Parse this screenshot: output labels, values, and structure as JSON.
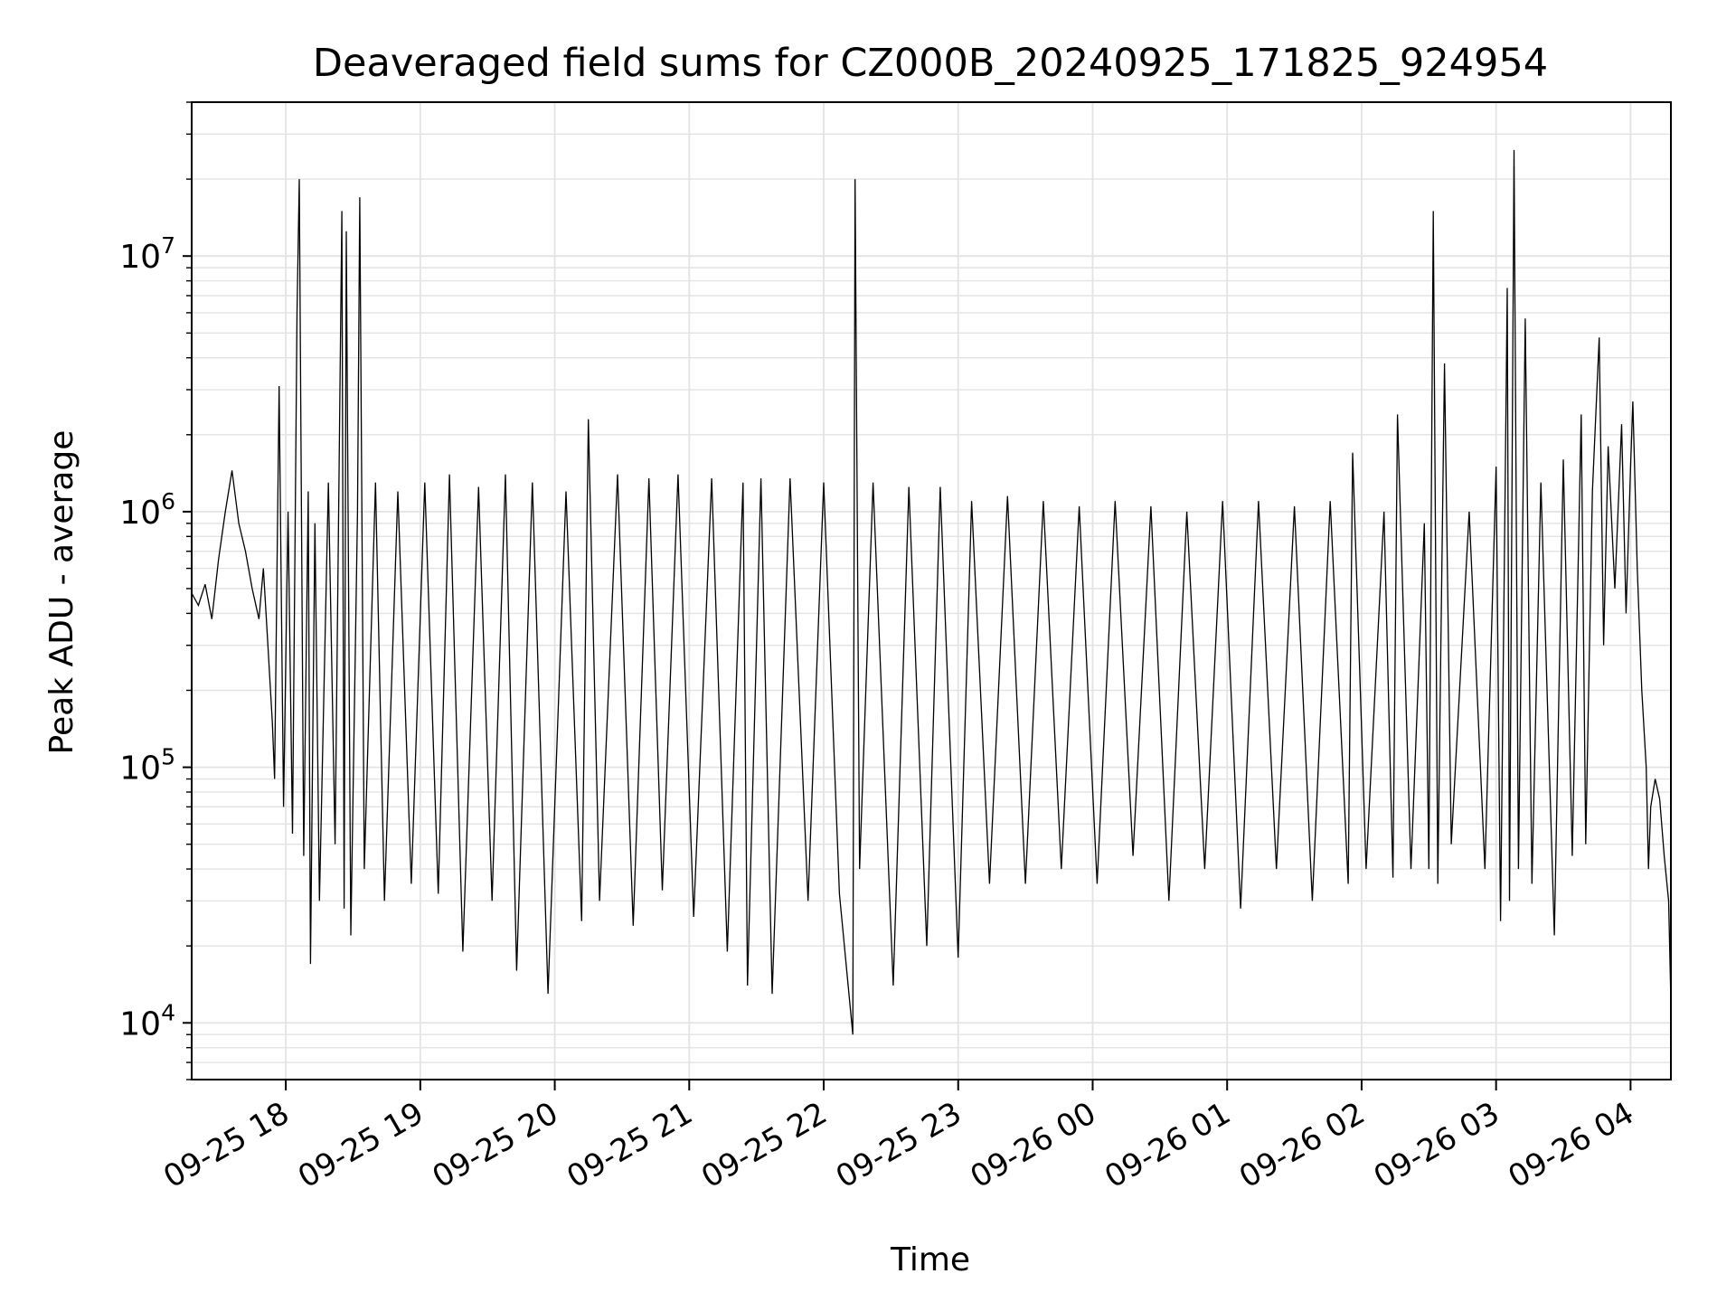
{
  "chart_data": {
    "type": "line",
    "title": "Deaveraged field sums for CZ000B_20240925_171825_924954",
    "xlabel": "Time",
    "ylabel": "Peak ADU - average",
    "yscale": "log",
    "grid": true,
    "legend": "none",
    "line_color": "#000000",
    "x_range": [
      "09-25 17:18",
      "09-26 04:18"
    ],
    "ylim": [
      6000,
      40000000
    ],
    "x_ticks": [
      "09-25 18",
      "09-25 19",
      "09-25 20",
      "09-25 21",
      "09-25 22",
      "09-25 23",
      "09-26 00",
      "09-26 01",
      "09-26 02",
      "09-26 03",
      "09-26 04"
    ],
    "y_ticks": [
      {
        "value": 10000,
        "base": "10",
        "exp": "4"
      },
      {
        "value": 100000,
        "base": "10",
        "exp": "5"
      },
      {
        "value": 1000000,
        "base": "10",
        "exp": "6"
      },
      {
        "value": 10000000,
        "base": "10",
        "exp": "7"
      }
    ],
    "series": [
      {
        "points": [
          [
            "09-25 17:18",
            480000
          ],
          [
            "09-25 17:21",
            430000
          ],
          [
            "09-25 17:24",
            520000
          ],
          [
            "09-25 17:27",
            380000
          ],
          [
            "09-25 17:30",
            650000
          ],
          [
            "09-25 17:33",
            1000000
          ],
          [
            "09-25 17:36",
            1450000
          ],
          [
            "09-25 17:39",
            900000
          ],
          [
            "09-25 17:42",
            700000
          ],
          [
            "09-25 17:45",
            500000
          ],
          [
            "09-25 17:48",
            380000
          ],
          [
            "09-25 17:50",
            600000
          ],
          [
            "09-25 17:52",
            300000
          ],
          [
            "09-25 17:54",
            150000
          ],
          [
            "09-25 17:55",
            90000
          ],
          [
            "09-25 17:57",
            3100000
          ],
          [
            "09-25 17:59",
            70000
          ],
          [
            "09-25 18:01",
            1000000
          ],
          [
            "09-25 18:03",
            55000
          ],
          [
            "09-25 18:05",
            6000000
          ],
          [
            "09-25 18:06",
            20000000
          ],
          [
            "09-25 18:08",
            45000
          ],
          [
            "09-25 18:10",
            1200000
          ],
          [
            "09-25 18:11",
            17000
          ],
          [
            "09-25 18:13",
            900000
          ],
          [
            "09-25 18:15",
            30000
          ],
          [
            "09-25 18:19",
            1300000
          ],
          [
            "09-25 18:22",
            50000
          ],
          [
            "09-25 18:25",
            15000000
          ],
          [
            "09-25 18:26",
            28000
          ],
          [
            "09-25 18:27",
            12500000
          ],
          [
            "09-25 18:29",
            22000
          ],
          [
            "09-25 18:32",
            1000000
          ],
          [
            "09-25 18:33",
            17000000
          ],
          [
            "09-25 18:35",
            40000
          ],
          [
            "09-25 18:40",
            1300000
          ],
          [
            "09-25 18:44",
            30000
          ],
          [
            "09-25 18:50",
            1200000
          ],
          [
            "09-25 18:56",
            35000
          ],
          [
            "09-25 19:02",
            1300000
          ],
          [
            "09-25 19:08",
            32000
          ],
          [
            "09-25 19:13",
            1400000
          ],
          [
            "09-25 19:19",
            19000
          ],
          [
            "09-25 19:26",
            1250000
          ],
          [
            "09-25 19:32",
            30000
          ],
          [
            "09-25 19:38",
            1400000
          ],
          [
            "09-25 19:43",
            16000
          ],
          [
            "09-25 19:50",
            1300000
          ],
          [
            "09-25 19:57",
            13000
          ],
          [
            "09-25 20:05",
            1200000
          ],
          [
            "09-25 20:12",
            25000
          ],
          [
            "09-25 20:15",
            2300000
          ],
          [
            "09-25 20:20",
            30000
          ],
          [
            "09-25 20:28",
            1400000
          ],
          [
            "09-25 20:35",
            24000
          ],
          [
            "09-25 20:42",
            1350000
          ],
          [
            "09-25 20:48",
            33000
          ],
          [
            "09-25 20:55",
            1400000
          ],
          [
            "09-25 21:02",
            26000
          ],
          [
            "09-25 21:10",
            1350000
          ],
          [
            "09-25 21:17",
            19000
          ],
          [
            "09-25 21:24",
            1300000
          ],
          [
            "09-25 21:26",
            14000
          ],
          [
            "09-25 21:32",
            1350000
          ],
          [
            "09-25 21:37",
            13000
          ],
          [
            "09-25 21:45",
            1350000
          ],
          [
            "09-25 21:53",
            30000
          ],
          [
            "09-25 22:00",
            1300000
          ],
          [
            "09-25 22:07",
            32000
          ],
          [
            "09-25 22:13",
            9000
          ],
          [
            "09-25 22:14",
            20000000
          ],
          [
            "09-25 22:16",
            40000
          ],
          [
            "09-25 22:22",
            1300000
          ],
          [
            "09-25 22:31",
            14000
          ],
          [
            "09-25 22:38",
            1250000
          ],
          [
            "09-25 22:46",
            20000
          ],
          [
            "09-25 22:52",
            1250000
          ],
          [
            "09-25 23:00",
            18000
          ],
          [
            "09-25 23:06",
            1100000
          ],
          [
            "09-25 23:14",
            35000
          ],
          [
            "09-25 23:22",
            1150000
          ],
          [
            "09-25 23:30",
            35000
          ],
          [
            "09-25 23:38",
            1100000
          ],
          [
            "09-25 23:46",
            40000
          ],
          [
            "09-25 23:54",
            1050000
          ],
          [
            "09-26 00:02",
            35000
          ],
          [
            "09-26 00:10",
            1100000
          ],
          [
            "09-26 00:18",
            45000
          ],
          [
            "09-26 00:26",
            1050000
          ],
          [
            "09-26 00:34",
            30000
          ],
          [
            "09-26 00:42",
            1000000
          ],
          [
            "09-26 00:50",
            40000
          ],
          [
            "09-26 00:58",
            1100000
          ],
          [
            "09-26 01:06",
            28000
          ],
          [
            "09-26 01:14",
            1100000
          ],
          [
            "09-26 01:22",
            40000
          ],
          [
            "09-26 01:30",
            1050000
          ],
          [
            "09-26 01:38",
            30000
          ],
          [
            "09-26 01:46",
            1100000
          ],
          [
            "09-26 01:54",
            35000
          ],
          [
            "09-26 01:56",
            1700000
          ],
          [
            "09-26 02:02",
            40000
          ],
          [
            "09-26 02:10",
            1000000
          ],
          [
            "09-26 02:14",
            37000
          ],
          [
            "09-26 02:16",
            2400000
          ],
          [
            "09-26 02:22",
            40000
          ],
          [
            "09-26 02:28",
            900000
          ],
          [
            "09-26 02:30",
            40000
          ],
          [
            "09-26 02:32",
            15000000
          ],
          [
            "09-26 02:34",
            35000
          ],
          [
            "09-26 02:37",
            3800000
          ],
          [
            "09-26 02:40",
            50000
          ],
          [
            "09-26 02:48",
            1000000
          ],
          [
            "09-26 02:55",
            40000
          ],
          [
            "09-26 03:00",
            1500000
          ],
          [
            "09-26 03:02",
            25000
          ],
          [
            "09-26 03:05",
            7500000
          ],
          [
            "09-26 03:06",
            30000
          ],
          [
            "09-26 03:08",
            26000000
          ],
          [
            "09-26 03:10",
            40000
          ],
          [
            "09-26 03:13",
            5700000
          ],
          [
            "09-26 03:16",
            35000
          ],
          [
            "09-26 03:20",
            1300000
          ],
          [
            "09-26 03:26",
            22000
          ],
          [
            "09-26 03:30",
            1600000
          ],
          [
            "09-26 03:34",
            45000
          ],
          [
            "09-26 03:38",
            2400000
          ],
          [
            "09-26 03:40",
            50000
          ],
          [
            "09-26 03:43",
            1200000
          ],
          [
            "09-26 03:46",
            4800000
          ],
          [
            "09-26 03:48",
            300000
          ],
          [
            "09-26 03:50",
            1800000
          ],
          [
            "09-26 03:53",
            500000
          ],
          [
            "09-26 03:56",
            2200000
          ],
          [
            "09-26 03:58",
            400000
          ],
          [
            "09-26 04:00",
            1500000
          ],
          [
            "09-26 04:01",
            2700000
          ],
          [
            "09-26 04:03",
            600000
          ],
          [
            "09-26 04:05",
            200000
          ],
          [
            "09-26 04:07",
            100000
          ],
          [
            "09-26 04:08",
            40000
          ],
          [
            "09-26 04:09",
            70000
          ],
          [
            "09-26 04:11",
            90000
          ],
          [
            "09-26 04:13",
            75000
          ],
          [
            "09-26 04:15",
            45000
          ],
          [
            "09-26 04:17",
            30000
          ],
          [
            "09-26 04:18",
            12000
          ]
        ]
      }
    ]
  }
}
